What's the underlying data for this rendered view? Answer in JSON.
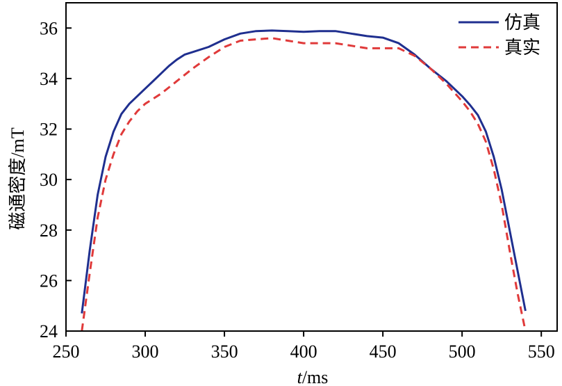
{
  "chart_data": {
    "type": "line",
    "title": "",
    "xlabel_italic": "t",
    "xlabel_rest": "/ms",
    "ylabel": "磁通密度/mT",
    "xlim": [
      250,
      560
    ],
    "ylim": [
      24,
      37
    ],
    "xticks": [
      250,
      300,
      350,
      400,
      450,
      500,
      550
    ],
    "yticks": [
      24,
      26,
      28,
      30,
      32,
      34,
      36
    ],
    "grid": false,
    "legend_position": "top-right",
    "series": [
      {
        "name": "仿真",
        "color": "#1f2f8f",
        "style": "solid",
        "x": [
          260,
          265,
          270,
          275,
          280,
          285,
          290,
          295,
          300,
          305,
          310,
          315,
          320,
          325,
          330,
          340,
          350,
          360,
          370,
          380,
          390,
          400,
          410,
          420,
          430,
          440,
          450,
          460,
          470,
          480,
          490,
          500,
          505,
          510,
          515,
          520,
          525,
          530,
          535,
          540
        ],
        "y": [
          24.7,
          27.2,
          29.4,
          30.9,
          31.9,
          32.6,
          33.0,
          33.3,
          33.6,
          33.9,
          34.2,
          34.5,
          34.75,
          34.95,
          35.05,
          35.25,
          35.55,
          35.78,
          35.88,
          35.9,
          35.88,
          35.85,
          35.88,
          35.88,
          35.78,
          35.68,
          35.62,
          35.4,
          34.95,
          34.4,
          33.9,
          33.3,
          32.95,
          32.55,
          31.9,
          30.9,
          29.6,
          28.0,
          26.4,
          24.8
        ]
      },
      {
        "name": "真实",
        "color": "#e03a3a",
        "style": "dashed",
        "x": [
          260,
          265,
          270,
          275,
          280,
          285,
          290,
          295,
          300,
          305,
          310,
          320,
          330,
          340,
          350,
          360,
          370,
          380,
          390,
          400,
          410,
          420,
          430,
          440,
          450,
          460,
          470,
          480,
          490,
          500,
          505,
          510,
          515,
          520,
          525,
          530,
          535,
          540
        ],
        "y": [
          24.0,
          26.3,
          28.5,
          30.0,
          31.0,
          31.8,
          32.3,
          32.7,
          33.0,
          33.2,
          33.4,
          33.9,
          34.4,
          34.85,
          35.25,
          35.5,
          35.55,
          35.6,
          35.5,
          35.4,
          35.4,
          35.4,
          35.3,
          35.2,
          35.2,
          35.2,
          34.9,
          34.4,
          33.8,
          33.1,
          32.7,
          32.2,
          31.5,
          30.4,
          29.0,
          27.2,
          25.5,
          24.0
        ]
      }
    ]
  }
}
